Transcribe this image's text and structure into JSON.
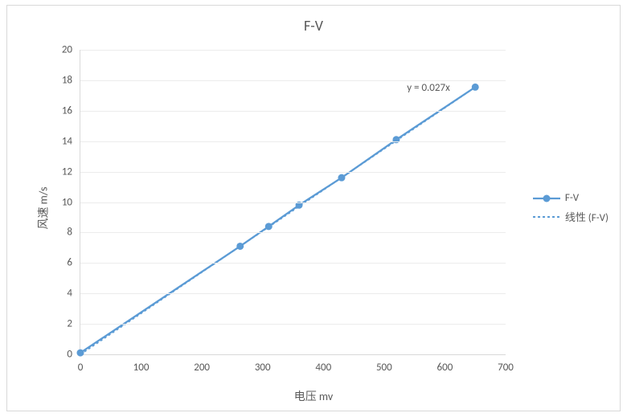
{
  "chart": {
    "type": "line",
    "title": "F-V",
    "title_fontsize": 18,
    "x_axis_label": "电压    mv",
    "y_axis_label": "风速    m/s",
    "label_fontsize": 14,
    "tick_fontsize": 13,
    "text_color": "#595959",
    "background_color": "#ffffff",
    "frame_border_color": "#d9d9d9",
    "grid_color": "#ececec",
    "axis_color": "#d9d9d9",
    "xlim": [
      0,
      700
    ],
    "xtick_step": 100,
    "xticks": [
      0,
      100,
      200,
      300,
      400,
      500,
      600,
      700
    ],
    "ylim": [
      0,
      20
    ],
    "ytick_step": 2,
    "yticks": [
      0,
      2,
      4,
      6,
      8,
      10,
      12,
      14,
      16,
      18,
      20
    ],
    "series": {
      "name": "F-V",
      "x": [
        0,
        263,
        310,
        360,
        430,
        520,
        650
      ],
      "y": [
        0.1,
        7.1,
        8.4,
        9.8,
        11.6,
        14.1,
        17.55
      ],
      "line_color": "#5b9bd5",
      "line_width": 2.3,
      "marker_style": "circle",
      "marker_radius": 4.5,
      "marker_fill": "#5b9bd5",
      "marker_stroke": "#ffffff",
      "marker_stroke_width": 0
    },
    "trendline": {
      "name": "线性 (F-V)",
      "type": "linear",
      "equation_label": "y = 0.027x",
      "line_color": "#5b9bd5",
      "dash": "3,3",
      "line_width": 2,
      "x_range": [
        0,
        650
      ],
      "slope": 0.027,
      "intercept": 0
    },
    "legend": {
      "position": "right",
      "items": [
        "F-V",
        "线性 (F-V)"
      ]
    }
  }
}
